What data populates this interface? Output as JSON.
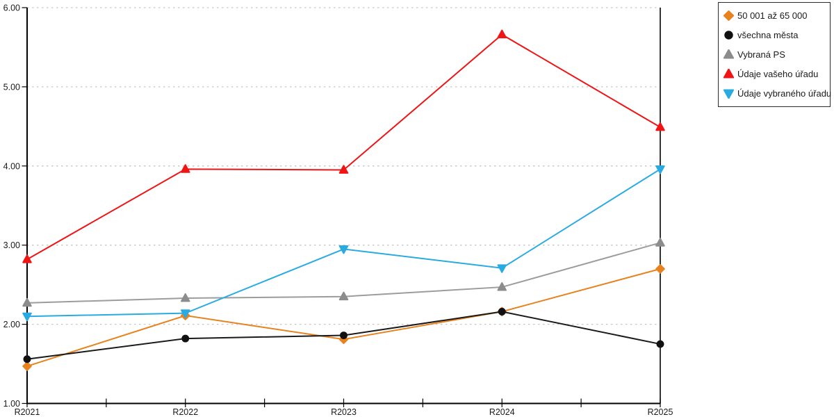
{
  "chart_data": {
    "type": "line",
    "title": "",
    "categories": [
      "R2021",
      "R2022",
      "R2023",
      "R2024",
      "R2025"
    ],
    "series": [
      {
        "name": "50 001 až 65 000",
        "marker": "diamond",
        "color": "#E8821E",
        "line_color": "#E8821E",
        "values": [
          1.47,
          2.11,
          1.81,
          2.16,
          2.7
        ]
      },
      {
        "name": "všechna města",
        "marker": "circle",
        "color": "#111111",
        "line_color": "#1A1A1A",
        "values": [
          1.56,
          1.82,
          1.86,
          2.16,
          1.75
        ]
      },
      {
        "name": "Vybraná PS",
        "marker": "triangle-up",
        "color": "#8C8C8C",
        "line_color": "#9C9C9C",
        "values": [
          2.27,
          2.33,
          2.35,
          2.47,
          3.03
        ]
      },
      {
        "name": "Údaje vašeho úřadu",
        "marker": "triangle-up",
        "color": "#F01414",
        "line_color": "#F01414",
        "values": [
          2.82,
          3.96,
          3.95,
          5.66,
          4.49
        ]
      },
      {
        "name": "Údaje vybraného úřadu",
        "marker": "triangle-down",
        "color": "#29ABE2",
        "line_color": "#29ABE2",
        "values": [
          2.1,
          2.14,
          2.95,
          2.71,
          3.96
        ]
      }
    ],
    "ylim": [
      1,
      6
    ],
    "ytick_labels": [
      "1.00",
      "2.00",
      "3.00",
      "4.00",
      "5.00",
      "6.00"
    ],
    "grid": "horizontal-dotted",
    "legend_position": "top-right-outside",
    "colors": {
      "axis": "#000000",
      "gridline": "#C6C6C6",
      "text": "#1A1A1A",
      "background": "#FFFFFF"
    }
  }
}
